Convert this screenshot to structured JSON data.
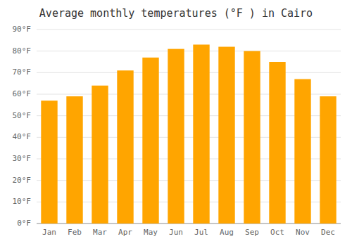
{
  "chart_data": {
    "type": "bar",
    "title": "Average monthly temperatures (°F ) in Cairo",
    "categories": [
      "Jan",
      "Feb",
      "Mar",
      "Apr",
      "May",
      "Jun",
      "Jul",
      "Aug",
      "Sep",
      "Oct",
      "Nov",
      "Dec"
    ],
    "values": [
      57,
      59,
      64,
      71,
      77,
      81,
      83,
      82,
      80,
      75,
      67,
      59
    ],
    "color": "#FFA500",
    "ylim": [
      0,
      90
    ],
    "yticks": [
      {
        "value": 0,
        "label": "0°F"
      },
      {
        "value": 10,
        "label": "10°F"
      },
      {
        "value": 20,
        "label": "20°F"
      },
      {
        "value": 30,
        "label": "30°F"
      },
      {
        "value": 40,
        "label": "40°F"
      },
      {
        "value": 50,
        "label": "50°F"
      },
      {
        "value": 60,
        "label": "60°F"
      },
      {
        "value": 70,
        "label": "70°F"
      },
      {
        "value": 80,
        "label": "80°F"
      },
      {
        "value": 90,
        "label": "90°F"
      }
    ],
    "grid": true
  }
}
